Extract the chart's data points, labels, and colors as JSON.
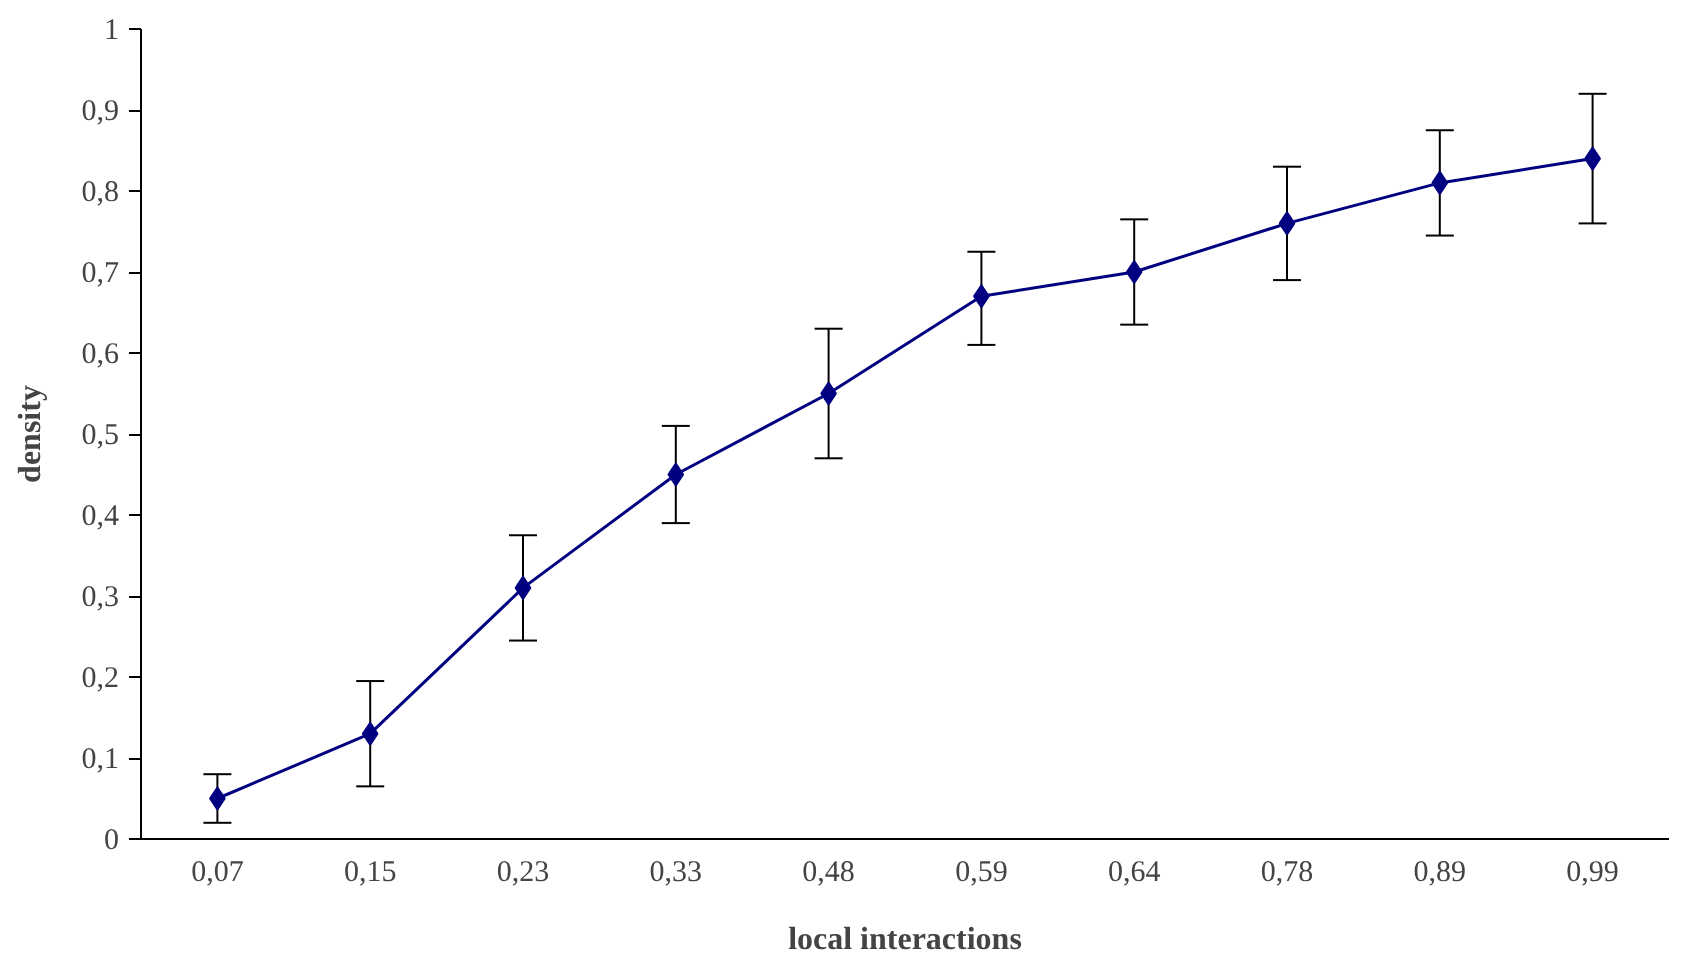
{
  "chart_data": {
    "type": "line",
    "xlabel": "local interactions",
    "ylabel": "density",
    "categories": [
      "0,07",
      "0,15",
      "0,23",
      "0,33",
      "0,48",
      "0,59",
      "0,64",
      "0,78",
      "0,89",
      "0,99"
    ],
    "series": [
      {
        "color": "#000080",
        "values": [
          0.05,
          0.13,
          0.31,
          0.45,
          0.55,
          0.67,
          0.7,
          0.76,
          0.81,
          0.84
        ],
        "errors": [
          [
            0.02,
            0.08
          ],
          [
            0.065,
            0.195
          ],
          [
            0.245,
            0.375
          ],
          [
            0.39,
            0.51
          ],
          [
            0.47,
            0.63
          ],
          [
            0.61,
            0.725
          ],
          [
            0.635,
            0.765
          ],
          [
            0.69,
            0.83
          ],
          [
            0.745,
            0.875
          ],
          [
            0.76,
            0.92
          ]
        ]
      }
    ],
    "ylim": [
      0,
      1
    ],
    "yticks": [
      0,
      {
        "value": 0.1,
        "label": "0,1"
      },
      {
        "value": 0.2,
        "label": "0,2"
      },
      {
        "value": 0.3,
        "label": "0,3"
      },
      {
        "value": 0.4,
        "label": "0,4"
      },
      {
        "value": 0.5,
        "label": "0,5"
      },
      {
        "value": 0.6,
        "label": "0,6"
      },
      {
        "value": 0.7,
        "label": "0,7"
      },
      {
        "value": 0.8,
        "label": "0,8"
      },
      {
        "value": 0.9,
        "label": "0,9"
      },
      1
    ],
    "marker": "diamond",
    "line_style": "solid",
    "grid": false
  }
}
